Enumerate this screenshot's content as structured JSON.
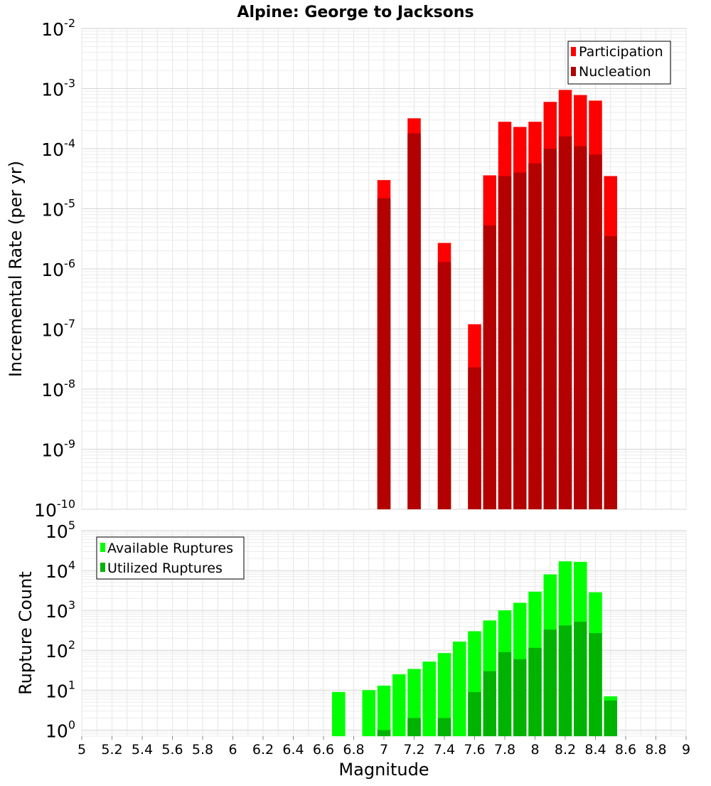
{
  "title": "Alpine: George to Jacksons",
  "chart_data": [
    {
      "type": "bar",
      "ylabel": "Incremental Rate (per yr)",
      "xlabel": "",
      "yscale": "log",
      "ylim": [
        1e-10,
        0.01
      ],
      "xlim": [
        5,
        9
      ],
      "grid": true,
      "legend_position": "top-right",
      "x": [
        7.0,
        7.2,
        7.4,
        7.6,
        7.7,
        7.8,
        7.9,
        8.0,
        8.1,
        8.2,
        8.3,
        8.4,
        8.5
      ],
      "series": [
        {
          "name": "Participation",
          "color": "#ff0000",
          "values": [
            3e-05,
            0.00032,
            2.7e-06,
            1.2e-07,
            3.6e-05,
            0.00028,
            0.00023,
            0.00028,
            0.0006,
            0.00095,
            0.00078,
            0.00063,
            3.5e-05
          ]
        },
        {
          "name": "Nucleation",
          "color": "#b30000",
          "values": [
            1.5e-05,
            0.00018,
            1.3e-06,
            2.3e-08,
            5.3e-06,
            3.5e-05,
            4e-05,
            5.7e-05,
            0.0001,
            0.00016,
            0.00011,
            8e-05,
            3.5e-06
          ]
        }
      ],
      "y_ticks": [
        {
          "base": "10",
          "exp": "-2"
        },
        {
          "base": "10",
          "exp": "-3"
        },
        {
          "base": "10",
          "exp": "-4"
        },
        {
          "base": "10",
          "exp": "-5"
        },
        {
          "base": "10",
          "exp": "-6"
        },
        {
          "base": "10",
          "exp": "-7"
        },
        {
          "base": "10",
          "exp": "-8"
        },
        {
          "base": "10",
          "exp": "-9"
        },
        {
          "base": "10",
          "exp": "-10"
        }
      ]
    },
    {
      "type": "bar",
      "ylabel": "Rupture Count",
      "xlabel": "Magnitude",
      "yscale": "log",
      "ylim": [
        0.7,
        100000.0
      ],
      "xlim": [
        5,
        9
      ],
      "grid": true,
      "legend_position": "top-left",
      "x": [
        6.7,
        6.9,
        7.0,
        7.1,
        7.2,
        7.3,
        7.4,
        7.5,
        7.6,
        7.7,
        7.8,
        7.9,
        8.0,
        8.1,
        8.2,
        8.3,
        8.4,
        8.5
      ],
      "series": [
        {
          "name": "Available Ruptures",
          "color": "#00ff00",
          "values": [
            9,
            10,
            13,
            25,
            34,
            52,
            85,
            165,
            300,
            560,
            1000,
            1550,
            2950,
            8000,
            17000,
            16500,
            2850,
            7
          ]
        },
        {
          "name": "Utilized Ruptures",
          "color": "#00b300",
          "values": [
            0,
            0,
            1,
            0,
            2,
            0,
            2,
            0,
            9,
            30,
            90,
            60,
            115,
            330,
            420,
            520,
            270,
            5.5
          ]
        }
      ],
      "y_ticks": [
        {
          "base": "10",
          "exp": "5"
        },
        {
          "base": "10",
          "exp": "4"
        },
        {
          "base": "10",
          "exp": "3"
        },
        {
          "base": "10",
          "exp": "2"
        },
        {
          "base": "10",
          "exp": "1"
        },
        {
          "base": "10",
          "exp": "0"
        }
      ],
      "x_tick_labels": [
        "5",
        "5.2",
        "5.4",
        "5.6",
        "5.8",
        "6",
        "6.2",
        "6.4",
        "6.6",
        "6.8",
        "7",
        "7.2",
        "7.4",
        "7.6",
        "7.8",
        "8",
        "8.2",
        "8.4",
        "8.6",
        "8.8",
        "9"
      ]
    }
  ]
}
